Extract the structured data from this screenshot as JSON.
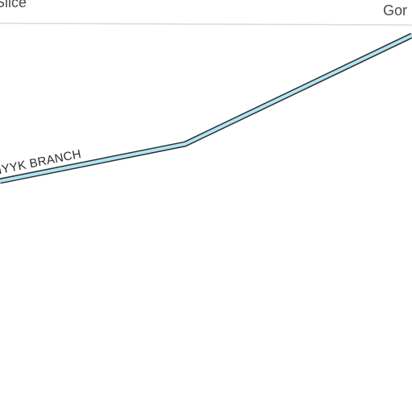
{
  "map": {
    "labels": {
      "top_left": "Slice",
      "top_right": "Gor",
      "waterway": "HYYK BRANCH"
    },
    "colors": {
      "background": "#ffffff",
      "water_fill": "#b3e4f2",
      "water_outline": "#2a2f33",
      "boundary": "#dadada",
      "label_text": "#4a4a4a"
    },
    "features": {
      "waterway_type": "stream",
      "boundary_type": "road-edge"
    }
  }
}
